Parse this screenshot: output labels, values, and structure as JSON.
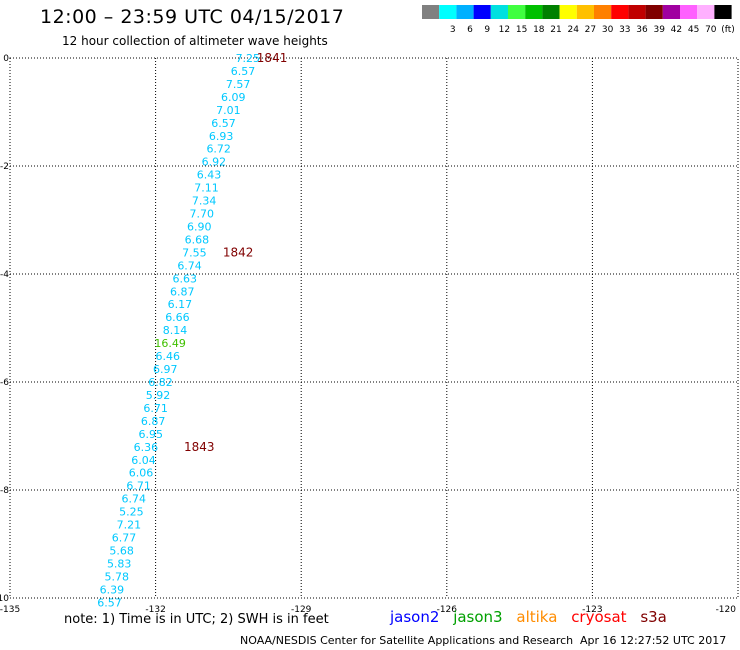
{
  "header": {
    "title": "12:00 – 23:59 UTC 04/15/2017",
    "subtitle": "12 hour collection of altimeter wave heights"
  },
  "colorbar": {
    "swatches": [
      {
        "color": "#808080",
        "label": ""
      },
      {
        "color": "#00ffff",
        "label": "3"
      },
      {
        "color": "#00b0ff",
        "label": "6"
      },
      {
        "color": "#0000ff",
        "label": "9"
      },
      {
        "color": "#00e0e0",
        "label": "12"
      },
      {
        "color": "#40ff40",
        "label": "15"
      },
      {
        "color": "#00c000",
        "label": "18"
      },
      {
        "color": "#008000",
        "label": "21"
      },
      {
        "color": "#ffff00",
        "label": "24"
      },
      {
        "color": "#ffc000",
        "label": "27"
      },
      {
        "color": "#ff8000",
        "label": "30"
      },
      {
        "color": "#ff0000",
        "label": "33"
      },
      {
        "color": "#c00000",
        "label": "36"
      },
      {
        "color": "#800000",
        "label": "39"
      },
      {
        "color": "#a000a0",
        "label": "42"
      },
      {
        "color": "#ff60ff",
        "label": "45"
      },
      {
        "color": "#ffb0ff",
        "label": "70"
      },
      {
        "color": "#000000",
        "label": "(ft)"
      }
    ]
  },
  "chart_data": {
    "type": "scatter",
    "title": "12:00 – 23:59 UTC 04/15/2017",
    "subtitle": "12 hour collection of altimeter wave heights",
    "xlim": [
      -135,
      -126
    ],
    "ylim": [
      -10,
      0
    ],
    "x_ticks": [
      "-135",
      "-132",
      "-129",
      "-126",
      "-123",
      "-120"
    ],
    "y_ticks": [
      "0",
      "-2",
      "-4",
      "-6",
      "-8",
      "-10"
    ],
    "grid": true,
    "series": [
      {
        "name": "jason2",
        "points": [
          {
            "x": -130.1,
            "y": -0.0,
            "v": "7.25"
          },
          {
            "x": -130.2,
            "y": -0.24,
            "v": "6.57"
          },
          {
            "x": -130.3,
            "y": -0.48,
            "v": "7.57"
          },
          {
            "x": -130.4,
            "y": -0.72,
            "v": "6.09"
          },
          {
            "x": -130.5,
            "y": -0.96,
            "v": "7.01"
          },
          {
            "x": -130.6,
            "y": -1.2,
            "v": "6.57"
          },
          {
            "x": -130.65,
            "y": -1.44,
            "v": "6.93"
          },
          {
            "x": -130.7,
            "y": -1.68,
            "v": "6.72"
          },
          {
            "x": -130.8,
            "y": -1.92,
            "v": "6.92"
          },
          {
            "x": -130.9,
            "y": -2.16,
            "v": "6.43"
          },
          {
            "x": -130.95,
            "y": -2.4,
            "v": "7.11"
          },
          {
            "x": -131.0,
            "y": -2.64,
            "v": "7.34"
          },
          {
            "x": -131.05,
            "y": -2.88,
            "v": "7.70"
          },
          {
            "x": -131.1,
            "y": -3.12,
            "v": "6.90"
          },
          {
            "x": -131.15,
            "y": -3.36,
            "v": "6.68"
          },
          {
            "x": -131.2,
            "y": -3.6,
            "v": "7.55"
          },
          {
            "x": -131.3,
            "y": -3.84,
            "v": "6.74"
          },
          {
            "x": -131.4,
            "y": -4.08,
            "v": "6.63"
          },
          {
            "x": -131.45,
            "y": -4.32,
            "v": "6.87"
          },
          {
            "x": -131.5,
            "y": -4.56,
            "v": "6.17"
          },
          {
            "x": -131.55,
            "y": -4.8,
            "v": "6.66"
          },
          {
            "x": -131.6,
            "y": -5.04,
            "v": "8.14"
          },
          {
            "x": -131.7,
            "y": -5.28,
            "v": "16.49"
          },
          {
            "x": -131.75,
            "y": -5.52,
            "v": "6.46"
          },
          {
            "x": -131.8,
            "y": -5.76,
            "v": "6.97"
          },
          {
            "x": -131.9,
            "y": -6.0,
            "v": "6.82"
          },
          {
            "x": -131.95,
            "y": -6.24,
            "v": "5.92"
          },
          {
            "x": -132.0,
            "y": -6.48,
            "v": "6.71"
          },
          {
            "x": -132.05,
            "y": -6.72,
            "v": "6.87"
          },
          {
            "x": -132.1,
            "y": -6.96,
            "v": "6.95"
          },
          {
            "x": -132.2,
            "y": -7.2,
            "v": "6.36"
          },
          {
            "x": -132.25,
            "y": -7.44,
            "v": "6.04"
          },
          {
            "x": -132.3,
            "y": -7.68,
            "v": "6.06"
          },
          {
            "x": -132.35,
            "y": -7.92,
            "v": "6.71"
          },
          {
            "x": -132.45,
            "y": -8.16,
            "v": "6.74"
          },
          {
            "x": -132.5,
            "y": -8.4,
            "v": "5.25"
          },
          {
            "x": -132.55,
            "y": -8.64,
            "v": "7.21"
          },
          {
            "x": -132.65,
            "y": -8.88,
            "v": "6.77"
          },
          {
            "x": -132.7,
            "y": -9.12,
            "v": "5.68"
          },
          {
            "x": -132.75,
            "y": -9.36,
            "v": "5.83"
          },
          {
            "x": -132.8,
            "y": -9.6,
            "v": "5.78"
          },
          {
            "x": -132.9,
            "y": -9.84,
            "v": "6.39"
          },
          {
            "x": -132.95,
            "y": -10.08,
            "v": "6.57"
          }
        ]
      }
    ],
    "time_marks": [
      {
        "label": "1841",
        "x": -129.6,
        "y": 0.0
      },
      {
        "label": "1842",
        "x": -130.3,
        "y": -3.6
      },
      {
        "label": "1843",
        "x": -131.1,
        "y": -7.2
      }
    ]
  },
  "colors": {
    "swh_cyan": "#00c8ff",
    "swh_green": "#40c000",
    "time_mark": "#800000",
    "jason2": "#0000ff",
    "jason3": "#00a000",
    "altika": "#ff8c00",
    "cryosat": "#ff0000",
    "s3a": "#800000"
  },
  "footer": {
    "note": "note: 1) Time is in UTC; 2) SWH is in feet",
    "credit": "NOAA/NESDIS Center for Satellite Applications and Research",
    "timestamp": "Apr 16 12:27:52 UTC 2017",
    "legend": [
      {
        "label": "jason2",
        "color": "#0000ff"
      },
      {
        "label": "jason3",
        "color": "#00a000"
      },
      {
        "label": "altika",
        "color": "#ff8c00"
      },
      {
        "label": "cryosat",
        "color": "#ff0000"
      },
      {
        "label": "s3a",
        "color": "#800000"
      }
    ]
  }
}
